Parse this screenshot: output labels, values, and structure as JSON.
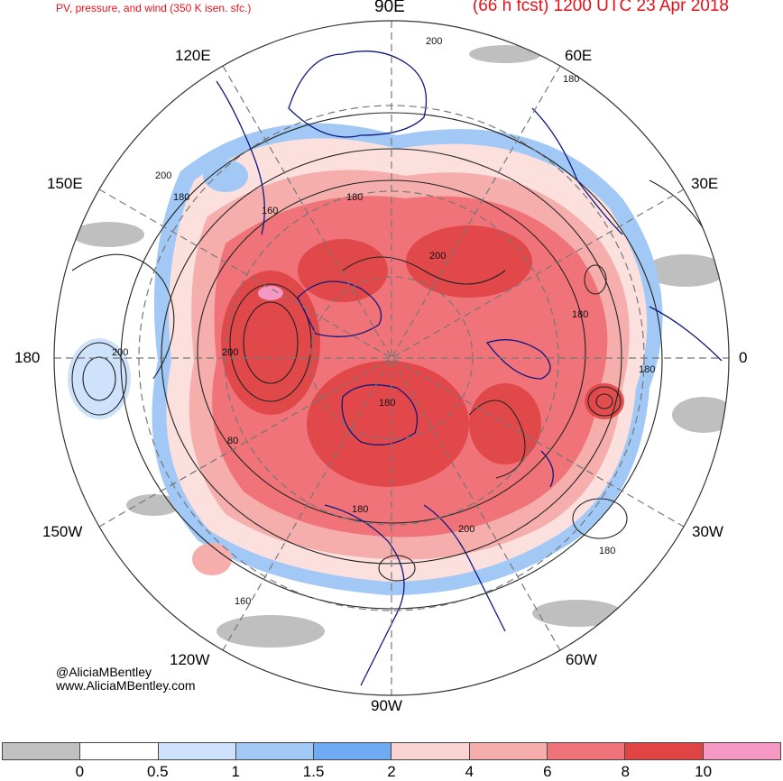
{
  "header": {
    "subtitle": "PV, pressure, and wind (350 K isen. sfc.)",
    "forecast": "(66 h fcst) 1200 UTC 23 Apr 2018"
  },
  "longitude_labels": {
    "lon_90e": "90E",
    "lon_60e": "60E",
    "lon_120e": "120E",
    "lon_30e": "30E",
    "lon_150e": "150E",
    "lon_180": "180",
    "lon_0": "0",
    "lon_150w": "150W",
    "lon_30w": "30W",
    "lon_120w": "120W",
    "lon_60w": "60W",
    "lon_90w": "90W"
  },
  "contour_labels": [
    "200",
    "180",
    "200",
    "180",
    "160",
    "180",
    "200",
    "200",
    "180",
    "200",
    "180",
    "180",
    "80",
    "180",
    "200",
    "180",
    "160"
  ],
  "credit": {
    "handle": "@AliciaMBentley",
    "website": "www.AliciaMBentley.com"
  },
  "colorbar": {
    "colors": [
      "#c0c0c0",
      "#ffffff",
      "#cfe2fb",
      "#a2c8f6",
      "#6fabf3",
      "#f9d4d2",
      "#f5aeac",
      "#ef7378",
      "#e04444",
      "#f598c4"
    ],
    "ticks": [
      "0",
      "0.5",
      "1",
      "1.5",
      "2",
      "4",
      "6",
      "8",
      "10"
    ]
  }
}
